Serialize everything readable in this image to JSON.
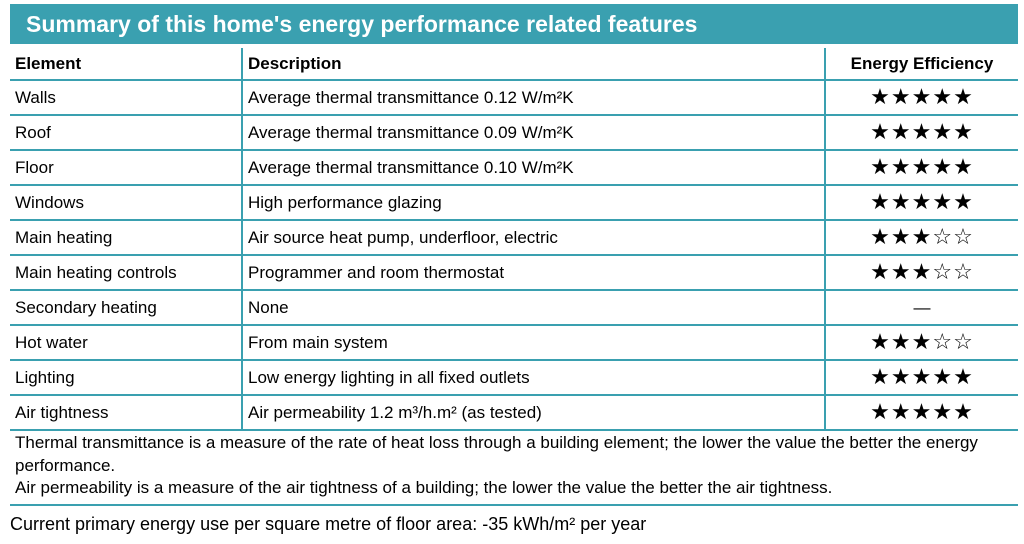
{
  "colors": {
    "accent": "#3aa0b0",
    "title_text": "#ffffff"
  },
  "title": "Summary of this home's energy performance related features",
  "table": {
    "headers": {
      "element": "Element",
      "description": "Description",
      "efficiency": "Energy Efficiency"
    },
    "rows": [
      {
        "element": "Walls",
        "description": "Average thermal transmittance 0.12 W/m²K",
        "rating": 5
      },
      {
        "element": "Roof",
        "description": "Average thermal transmittance 0.09 W/m²K",
        "rating": 5
      },
      {
        "element": "Floor",
        "description": "Average thermal transmittance 0.10 W/m²K",
        "rating": 5
      },
      {
        "element": "Windows",
        "description": "High performance glazing",
        "rating": 5
      },
      {
        "element": "Main heating",
        "description": "Air source heat pump, underfloor, electric",
        "rating": 3
      },
      {
        "element": "Main heating controls",
        "description": "Programmer and room thermostat",
        "rating": 3
      },
      {
        "element": "Secondary heating",
        "description": "None",
        "rating": null,
        "rating_text": "—"
      },
      {
        "element": "Hot water",
        "description": "From main system",
        "rating": 3
      },
      {
        "element": "Lighting",
        "description": "Low energy lighting in all fixed outlets",
        "rating": 5
      },
      {
        "element": "Air tightness",
        "description": "Air permeability 1.2 m³/h.m² (as tested)",
        "rating": 5
      }
    ],
    "max_rating": 5
  },
  "notes": {
    "thermal": "Thermal transmittance is a measure of the rate of heat loss through a building element; the lower the value the better the energy performance.",
    "air": "Air permeability is a measure of the air tightness of a building; the lower the value the better the air tightness."
  },
  "footer": "Current primary energy use per square metre of floor area: -35 kWh/m² per year"
}
